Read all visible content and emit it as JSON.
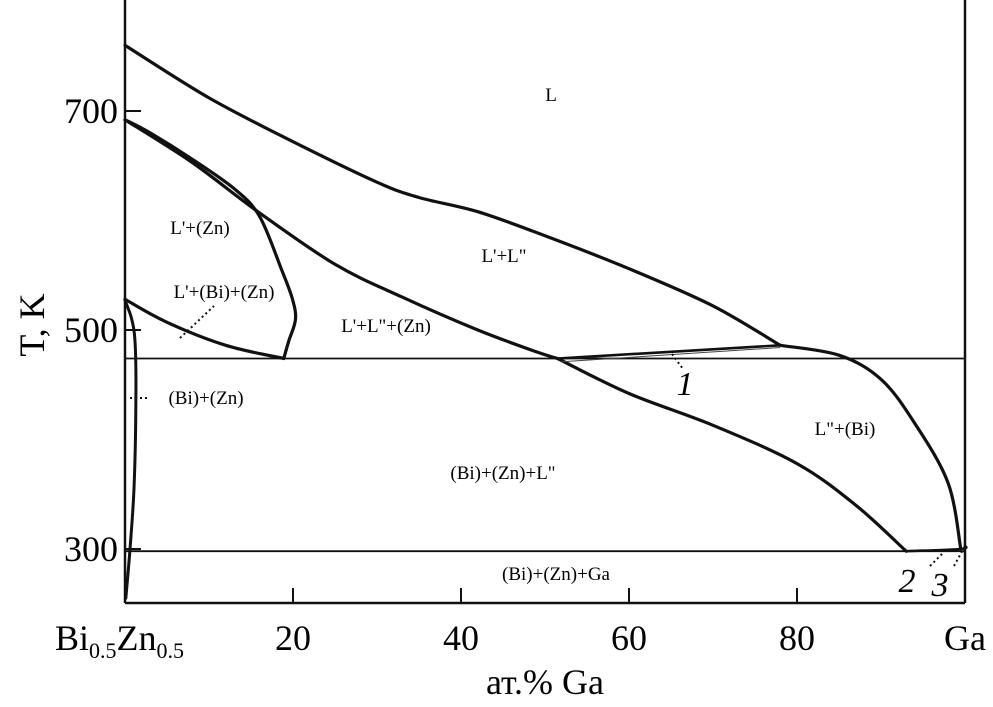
{
  "chart_data": {
    "type": "phase_diagram",
    "title": "",
    "xlabel": "ат.% Ga",
    "ylabel": "T, K",
    "x_range": [
      0,
      100
    ],
    "y_range": [
      255,
      805
    ],
    "x_ticks": [
      {
        "value": 20,
        "label": "20"
      },
      {
        "value": 40,
        "label": "40"
      },
      {
        "value": 60,
        "label": "60"
      },
      {
        "value": 80,
        "label": "80"
      }
    ],
    "y_ticks": [
      {
        "value": 300,
        "label": "300"
      },
      {
        "value": 500,
        "label": "500"
      },
      {
        "value": 700,
        "label": "700"
      }
    ],
    "left_end_label": {
      "main1": "Bi",
      "sub1": "0.5",
      "main2": "Zn",
      "sub2": "0.5"
    },
    "right_end_label": "Ga",
    "invariant_lines": [
      {
        "temperature": 474
      },
      {
        "temperature": 298
      }
    ],
    "regions": [
      {
        "label": "L"
      },
      {
        "label": "L'+(Zn)"
      },
      {
        "label": "L'+L\""
      },
      {
        "label": "L'+(Bi)+(Zn)"
      },
      {
        "label": "L'+L\"+(Zn)"
      },
      {
        "label": "(Bi)+(Zn)"
      },
      {
        "label": "L\"+(Bi)"
      },
      {
        "label": "(Bi)+(Zn)+L\""
      },
      {
        "label": "(Bi)+(Zn)+Ga"
      }
    ],
    "callouts": [
      "1",
      "2",
      "3"
    ],
    "boundaries": {
      "liquidus": [
        [
          0,
          760
        ],
        [
          10,
          712
        ],
        [
          20,
          672
        ],
        [
          30,
          635
        ],
        [
          35,
          621
        ],
        [
          42,
          608
        ],
        [
          50,
          586
        ],
        [
          60,
          556
        ],
        [
          70,
          522
        ],
        [
          78,
          486
        ]
      ],
      "zn_liquidus": [
        [
          0,
          692
        ],
        [
          3,
          680
        ],
        [
          8,
          656
        ],
        [
          13,
          629
        ],
        [
          16,
          604
        ],
        [
          18.6,
          556
        ],
        [
          19.9,
          529
        ],
        [
          20.3,
          510
        ],
        [
          19.5,
          490
        ],
        [
          18.9,
          474
        ]
      ],
      "miscibility_left": [
        [
          0,
          692
        ],
        [
          8,
          653
        ],
        [
          16,
          607
        ],
        [
          25,
          560
        ],
        [
          33,
          530
        ],
        [
          42,
          500
        ],
        [
          49,
          480
        ],
        [
          51.5,
          474
        ]
      ],
      "bi_liquidus": [
        [
          78,
          486
        ],
        [
          85,
          477
        ],
        [
          90,
          455
        ],
        [
          94,
          415
        ],
        [
          98,
          360
        ],
        [
          99.5,
          300
        ]
      ],
      "lower_boundary": [
        [
          51.5,
          474
        ],
        [
          60,
          442
        ],
        [
          70,
          413
        ],
        [
          80,
          378
        ],
        [
          87,
          340
        ],
        [
          93,
          298
        ]
      ],
      "monotectic_tie": [
        [
          51.5,
          474
        ],
        [
          78,
          486
        ]
      ],
      "eutectic_tie_right": [
        [
          93,
          298
        ],
        [
          99.5,
          300
        ],
        [
          100,
          303
        ]
      ],
      "bi_solvus": [
        [
          0,
          528
        ],
        [
          5,
          507
        ],
        [
          12,
          486
        ],
        [
          18.9,
          474
        ]
      ],
      "left_solvus": [
        [
          0,
          527
        ],
        [
          0.8,
          510
        ],
        [
          1.2,
          488
        ],
        [
          1.3,
          440
        ],
        [
          1.1,
          360
        ],
        [
          0.6,
          300
        ],
        [
          0.1,
          255
        ]
      ]
    }
  }
}
